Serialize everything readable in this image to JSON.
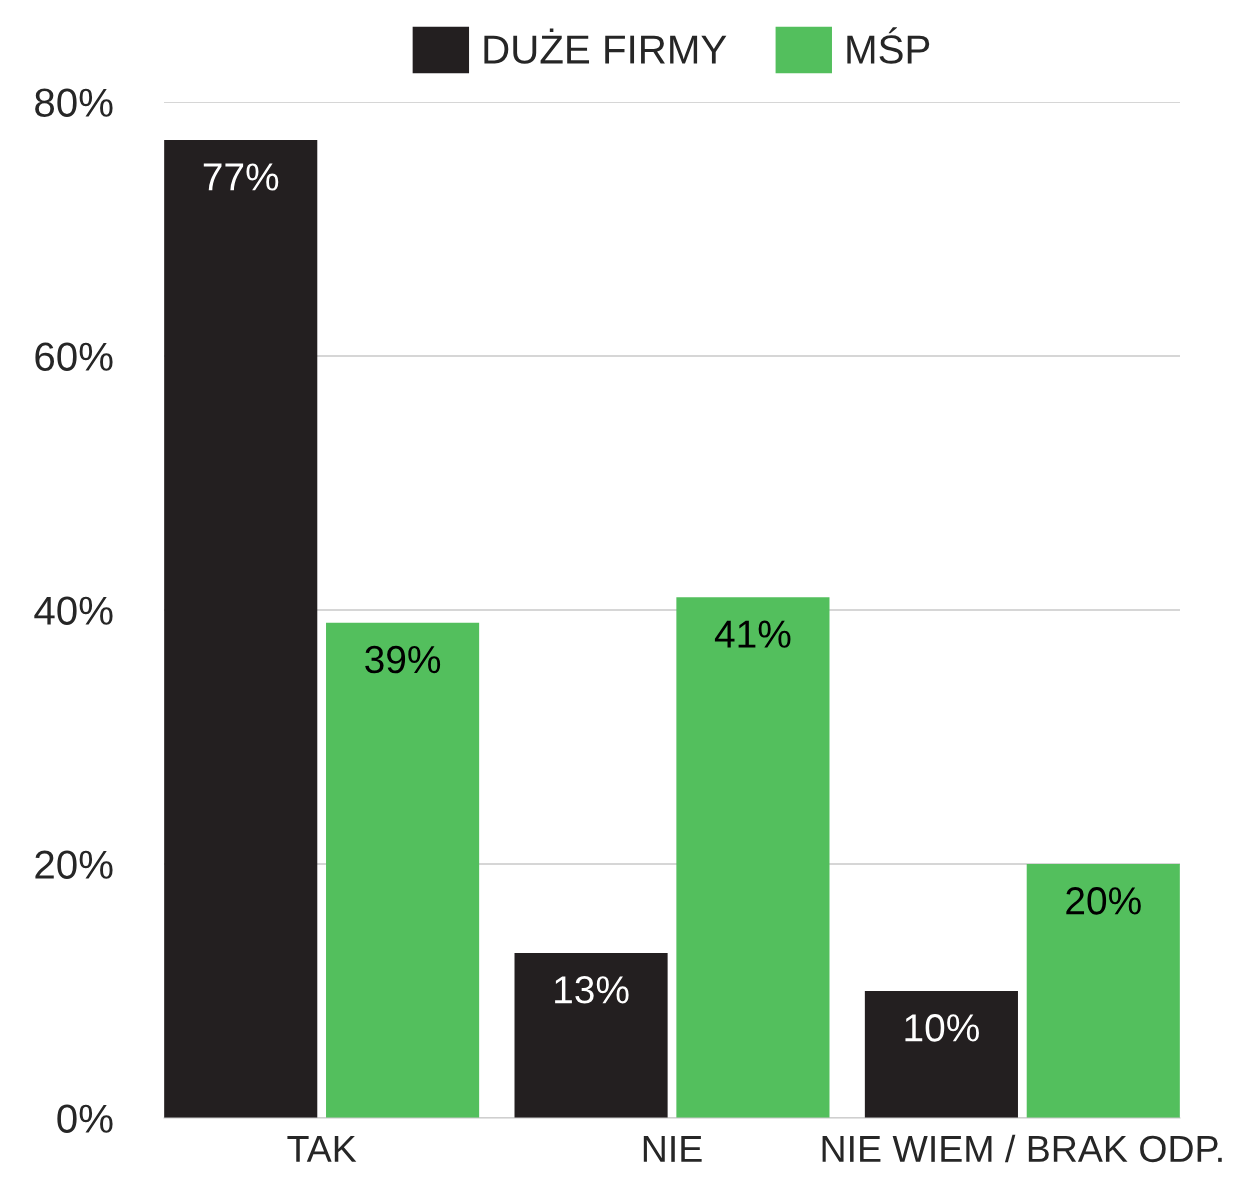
{
  "chart_data": {
    "type": "bar",
    "categories": [
      "TAK",
      "NIE",
      "NIE WIEM / BRAK ODP."
    ],
    "series": [
      {
        "name": "DUŻE FIRMY",
        "color": "#231f20",
        "values": [
          77,
          13,
          10
        ],
        "value_labels": [
          "77%",
          "13%",
          "10%"
        ]
      },
      {
        "name": "MŚP",
        "color": "#53bf5d",
        "values": [
          39,
          41,
          20
        ],
        "value_labels": [
          "39%",
          "41%",
          "20%"
        ]
      }
    ],
    "ylim": [
      0,
      80
    ],
    "yticks": [
      {
        "value": 0,
        "label": "0%"
      },
      {
        "value": 20,
        "label": "20%"
      },
      {
        "value": 40,
        "label": "40%"
      },
      {
        "value": 60,
        "label": "60%"
      },
      {
        "value": 80,
        "label": "80%"
      }
    ],
    "grid": "y",
    "legend": "top"
  }
}
